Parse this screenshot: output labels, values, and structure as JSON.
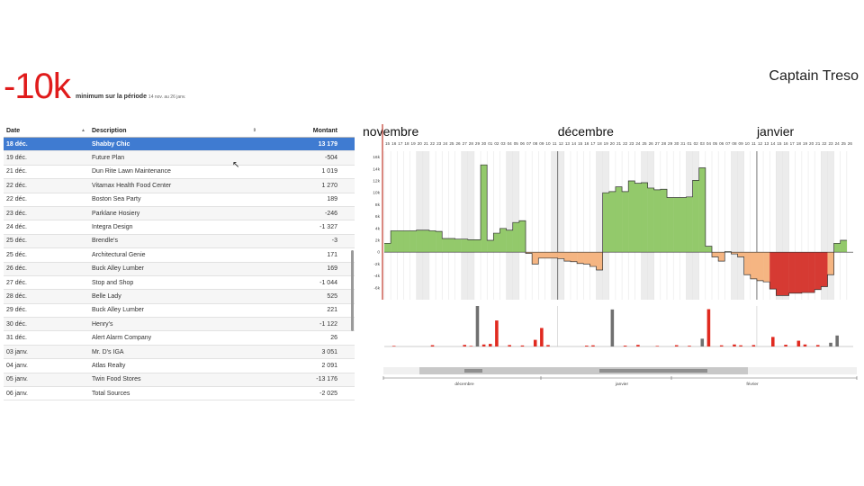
{
  "kpi": {
    "value": "-10k",
    "label": "minimum sur la période",
    "range": "14 nov. au 26 janv."
  },
  "app_title": "Captain Treso",
  "grid": {
    "columns": {
      "date": "Date",
      "description": "Description",
      "amount": "Montant"
    },
    "sort_indicator": "▲",
    "sort_indicator_secondary": "⇕",
    "rows": [
      {
        "date": "18 déc.",
        "desc": "Shabby Chic",
        "amount": "13 179",
        "selected": true
      },
      {
        "date": "19 déc.",
        "desc": "Future Plan",
        "amount": "-504"
      },
      {
        "date": "21 déc.",
        "desc": "Dun Rite Lawn Maintenance",
        "amount": "1 019"
      },
      {
        "date": "22 déc.",
        "desc": "Vitamax Health Food Center",
        "amount": "1 270"
      },
      {
        "date": "22 déc.",
        "desc": "Boston Sea Party",
        "amount": "189"
      },
      {
        "date": "23 déc.",
        "desc": "Parklane Hosiery",
        "amount": "-246"
      },
      {
        "date": "24 déc.",
        "desc": "Integra Design",
        "amount": "-1 327"
      },
      {
        "date": "25 déc.",
        "desc": "Brendle's",
        "amount": "-3"
      },
      {
        "date": "25 déc.",
        "desc": "Architectural Genie",
        "amount": "171"
      },
      {
        "date": "26 déc.",
        "desc": "Buck Alley Lumber",
        "amount": "169"
      },
      {
        "date": "27 déc.",
        "desc": "Stop and Shop",
        "amount": "-1 044"
      },
      {
        "date": "28 déc.",
        "desc": "Belle Lady",
        "amount": "525"
      },
      {
        "date": "29 déc.",
        "desc": "Buck Alley Lumber",
        "amount": "221"
      },
      {
        "date": "30 déc.",
        "desc": "Henry's",
        "amount": "-1 122"
      },
      {
        "date": "31 déc.",
        "desc": "Alert Alarm Company",
        "amount": "26"
      },
      {
        "date": "03 janv.",
        "desc": "Mr. D's IGA",
        "amount": "3 051"
      },
      {
        "date": "04 janv.",
        "desc": "Atlas Realty",
        "amount": "2 091"
      },
      {
        "date": "05 janv.",
        "desc": "Twin Food Stores",
        "amount": "-13 176"
      },
      {
        "date": "06 janv.",
        "desc": "Total Sources",
        "amount": "-2 025"
      }
    ]
  },
  "chart_data": {
    "type": "area",
    "months": [
      {
        "label": "novembre",
        "day_index": 0
      },
      {
        "label": "décembre",
        "day_index": 27
      },
      {
        "label": "janvier",
        "day_index": 58
      }
    ],
    "day_labels": [
      "15",
      "16",
      "17",
      "18",
      "19",
      "20",
      "21",
      "22",
      "23",
      "24",
      "25",
      "26",
      "27",
      "28",
      "29",
      "30",
      "01",
      "02",
      "03",
      "04",
      "05",
      "06",
      "07",
      "08",
      "09",
      "10",
      "11",
      "12",
      "13",
      "14",
      "15",
      "16",
      "17",
      "18",
      "19",
      "20",
      "21",
      "22",
      "23",
      "24",
      "25",
      "26",
      "27",
      "28",
      "29",
      "30",
      "31",
      "01",
      "02",
      "03",
      "04",
      "05",
      "06",
      "07",
      "08",
      "09",
      "10",
      "11",
      "12",
      "13",
      "14",
      "15",
      "16",
      "17",
      "18",
      "19",
      "20",
      "21",
      "22",
      "23",
      "24",
      "25",
      "26"
    ],
    "y_ticks": [
      "16k",
      "14k",
      "12k",
      "10k",
      "8k",
      "6k",
      "4k",
      "2k",
      "0",
      "-2k",
      "-4k",
      "-6k"
    ],
    "ylim": [
      -8000,
      17000
    ],
    "balance": [
      1500,
      3600,
      3600,
      3600,
      3600,
      3700,
      3700,
      3600,
      3500,
      2300,
      2300,
      2200,
      2200,
      2100,
      2100,
      14700,
      2000,
      3200,
      4000,
      3700,
      5000,
      5300,
      -200,
      -2000,
      -1000,
      -1000,
      -1000,
      -1100,
      -1500,
      -1600,
      -1900,
      -2000,
      -2400,
      -3000,
      10000,
      10200,
      11000,
      10200,
      12000,
      11600,
      11700,
      10800,
      10500,
      10600,
      9200,
      9200,
      9200,
      9300,
      12100,
      14200,
      1000,
      -800,
      -1500,
      100,
      -300,
      -800,
      -3800,
      -4500,
      -4800,
      -5000,
      -6200,
      -7300,
      -7300,
      -6900,
      -6900,
      -6800,
      -6800,
      -6300,
      -5800,
      -3800,
      1500,
      2000
    ],
    "daily_flows": [
      {
        "d": 1,
        "v": 200
      },
      {
        "d": 7,
        "v": 450
      },
      {
        "d": 12,
        "v": 550
      },
      {
        "d": 13,
        "v": 200
      },
      {
        "d": 14,
        "v": 14000,
        "gray": true
      },
      {
        "d": 15,
        "v": 700
      },
      {
        "d": 16,
        "v": 900
      },
      {
        "d": 17,
        "v": 9000
      },
      {
        "d": 19,
        "v": 500
      },
      {
        "d": 21,
        "v": 350
      },
      {
        "d": 23,
        "v": 2300
      },
      {
        "d": 24,
        "v": 6400
      },
      {
        "d": 25,
        "v": 500
      },
      {
        "d": 31,
        "v": 300
      },
      {
        "d": 32,
        "v": 400
      },
      {
        "d": 35,
        "v": 12800,
        "gray": true
      },
      {
        "d": 37,
        "v": 300
      },
      {
        "d": 39,
        "v": 550
      },
      {
        "d": 42,
        "v": 200
      },
      {
        "d": 45,
        "v": 450
      },
      {
        "d": 47,
        "v": 250
      },
      {
        "d": 49,
        "v": 2700,
        "gray": true
      },
      {
        "d": 50,
        "v": 12900
      },
      {
        "d": 52,
        "v": 400
      },
      {
        "d": 54,
        "v": 700
      },
      {
        "d": 55,
        "v": 400
      },
      {
        "d": 57,
        "v": 500
      },
      {
        "d": 60,
        "v": 3300
      },
      {
        "d": 62,
        "v": 600
      },
      {
        "d": 64,
        "v": 2000
      },
      {
        "d": 65,
        "v": 700
      },
      {
        "d": 67,
        "v": 500
      },
      {
        "d": 69,
        "v": 1300,
        "gray": true
      },
      {
        "d": 70,
        "v": 3800,
        "gray": true
      }
    ],
    "timeline_labels": [
      "décembre",
      "janvier",
      "février"
    ],
    "colors": {
      "positive": "#93c96b",
      "negative": "#f5b582",
      "critical": "#d63a33",
      "flow": "#e02a20",
      "flow_gray": "#707070",
      "cursor": "#c0392b"
    }
  }
}
